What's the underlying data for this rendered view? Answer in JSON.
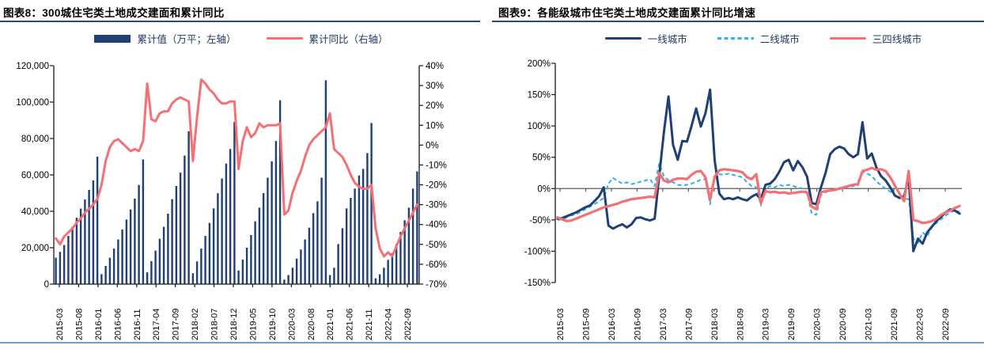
{
  "colors": {
    "navy": "#1F4073",
    "red": "#F47074",
    "cyan": "#2FB0E8",
    "axis": "#1a1a1a",
    "zero_line": "#595959",
    "title_rule": "#28497A",
    "footer_rule": "#7C9CC4",
    "legend_text": "#203A60"
  },
  "figure8": {
    "title": "图表8：300城住宅类土地成交建面和累计同比",
    "legend": [
      "累计值（万平；左轴）",
      "累计同比（右轴）"
    ]
  },
  "figure9": {
    "title": "图表9：各能级城市住宅类土地成交建面累计同比增速",
    "legend": [
      "一线城市",
      "二线城市",
      "三四线城市"
    ]
  },
  "chart_data": [
    {
      "type": "bar",
      "title": "图表8：300城住宅类土地成交建面和累计同比",
      "months": [
        "2015-02",
        "2015-03",
        "2015-04",
        "2015-05",
        "2015-06",
        "2015-07",
        "2015-08",
        "2015-09",
        "2015-10",
        "2015-11",
        "2015-12",
        "2016-02",
        "2016-03",
        "2016-04",
        "2016-05",
        "2016-06",
        "2016-07",
        "2016-08",
        "2016-09",
        "2016-10",
        "2016-11",
        "2016-12",
        "2017-02",
        "2017-03",
        "2017-04",
        "2017-05",
        "2017-06",
        "2017-07",
        "2017-08",
        "2017-09",
        "2017-10",
        "2017-11",
        "2017-12",
        "2018-02",
        "2018-03",
        "2018-04",
        "2018-05",
        "2018-06",
        "2018-07",
        "2018-08",
        "2018-09",
        "2018-10",
        "2018-11",
        "2018-12",
        "2019-02",
        "2019-03",
        "2019-04",
        "2019-05",
        "2019-06",
        "2019-07",
        "2019-08",
        "2019-09",
        "2019-10",
        "2019-11",
        "2019-12",
        "2020-02",
        "2020-03",
        "2020-04",
        "2020-05",
        "2020-06",
        "2020-07",
        "2020-08",
        "2020-09",
        "2020-10",
        "2020-11",
        "2020-12",
        "2021-02",
        "2021-03",
        "2021-04",
        "2021-05",
        "2021-06",
        "2021-07",
        "2021-08",
        "2021-09",
        "2021-10",
        "2021-11",
        "2021-12",
        "2022-02",
        "2022-03",
        "2022-04",
        "2022-05",
        "2022-06",
        "2022-07",
        "2022-08",
        "2022-09",
        "2022-10",
        "2022-11",
        "2022-12"
      ],
      "series": [
        {
          "name": "累计值（万平；左轴）",
          "type": "bar",
          "axis": "left",
          "values": [
            14500,
            17700,
            21500,
            26500,
            31500,
            36500,
            41500,
            46500,
            51800,
            57000,
            70000,
            5500,
            10000,
            14500,
            19500,
            24500,
            30000,
            35500,
            41000,
            47000,
            54500,
            68500,
            6500,
            12600,
            18400,
            24900,
            31500,
            38700,
            46700,
            53900,
            61200,
            70600,
            84000,
            6000,
            12500,
            19500,
            26500,
            33600,
            41600,
            49900,
            58000,
            66200,
            74200,
            89100,
            7500,
            13500,
            20000,
            27000,
            34500,
            42000,
            50000,
            58500,
            67500,
            78600,
            101000,
            2500,
            5000,
            9000,
            14000,
            19000,
            24500,
            31000,
            39000,
            45500,
            58500,
            112000,
            5000,
            9000,
            22000,
            30700,
            41600,
            47400,
            52500,
            59700,
            63300,
            72000,
            88500,
            3200,
            5400,
            9000,
            13300,
            17000,
            22000,
            28600,
            35100,
            42000,
            52500,
            61900
          ]
        },
        {
          "name": "累计同比（右轴）",
          "type": "line",
          "axis": "right",
          "values": [
            -47,
            -50,
            -46,
            -44,
            -42,
            -39,
            -37,
            -34,
            -32,
            -30,
            -27,
            -20,
            -8,
            -1,
            2,
            3,
            1,
            -1,
            -3,
            -2,
            -3,
            2,
            31,
            13,
            12,
            16,
            17,
            17,
            21,
            23,
            24,
            23,
            22,
            -8,
            14,
            33,
            31,
            28,
            26,
            23,
            21,
            21,
            22,
            22,
            -12,
            2,
            9,
            4,
            6,
            11,
            9,
            10,
            10,
            10,
            11,
            -35,
            -33,
            -24,
            -18,
            -13,
            -6,
            0,
            3,
            5,
            7,
            9,
            16,
            -2,
            -4,
            -6,
            -10,
            -15,
            -19,
            -21,
            -22,
            -22,
            -20,
            -42,
            -52,
            -56,
            -54,
            -56,
            -51,
            -46,
            -42,
            -38,
            -34,
            -30
          ]
        }
      ],
      "y_left_axis": {
        "min": 0,
        "max": 120000,
        "ticks": [
          "120,000",
          "100,000",
          "80,000",
          "60,000",
          "40,000",
          "20,000",
          "0"
        ]
      },
      "y_right_axis": {
        "min": -70,
        "max": 40,
        "ticks": [
          "40%",
          "30%",
          "20%",
          "10%",
          "0%",
          "-10%",
          "-20%",
          "-30%",
          "-40%",
          "-50%",
          "-60%",
          "-70%"
        ]
      },
      "x_tick_labels": [
        "2015-03",
        "2015-08",
        "2016-01",
        "2016-06",
        "2016-11",
        "2017-04",
        "2017-09",
        "2018-02",
        "2018-07",
        "2018-12",
        "2019-05",
        "2019-10",
        "2020-03",
        "2020-08",
        "2021-01",
        "2021-06",
        "2021-11",
        "2022-04",
        "2022-09"
      ],
      "grid": "off",
      "legend_position": "top"
    },
    {
      "type": "line",
      "title": "图表9：各能级城市住宅类土地成交建面累计同比增速",
      "months": [
        "2015-02",
        "2015-03",
        "2015-04",
        "2015-05",
        "2015-06",
        "2015-07",
        "2015-08",
        "2015-09",
        "2015-10",
        "2015-11",
        "2015-12",
        "2016-02",
        "2016-03",
        "2016-04",
        "2016-05",
        "2016-06",
        "2016-07",
        "2016-08",
        "2016-09",
        "2016-10",
        "2016-11",
        "2016-12",
        "2017-02",
        "2017-03",
        "2017-04",
        "2017-05",
        "2017-06",
        "2017-07",
        "2017-08",
        "2017-09",
        "2017-10",
        "2017-11",
        "2017-12",
        "2018-02",
        "2018-03",
        "2018-04",
        "2018-05",
        "2018-06",
        "2018-07",
        "2018-08",
        "2018-09",
        "2018-10",
        "2018-11",
        "2018-12",
        "2019-02",
        "2019-03",
        "2019-04",
        "2019-05",
        "2019-06",
        "2019-07",
        "2019-08",
        "2019-09",
        "2019-10",
        "2019-11",
        "2019-12",
        "2020-02",
        "2020-03",
        "2020-04",
        "2020-05",
        "2020-06",
        "2020-07",
        "2020-08",
        "2020-09",
        "2020-10",
        "2020-11",
        "2020-12",
        "2021-02",
        "2021-03",
        "2021-04",
        "2021-05",
        "2021-06",
        "2021-07",
        "2021-08",
        "2021-09",
        "2021-10",
        "2021-11",
        "2021-12",
        "2022-02",
        "2022-03",
        "2022-04",
        "2022-05",
        "2022-06",
        "2022-07",
        "2022-08",
        "2022-09",
        "2022-10",
        "2022-11",
        "2022-12"
      ],
      "series": [
        {
          "name": "一线城市",
          "type": "line",
          "style": "solid",
          "values": [
            -48,
            -47,
            -44,
            -41,
            -38,
            -34,
            -30,
            -27,
            -20,
            -12,
            2,
            -59,
            -64,
            -60,
            -57,
            -62,
            -57,
            -47,
            -46,
            -49,
            -51,
            -48,
            20,
            90,
            147,
            70,
            46,
            76,
            75,
            100,
            128,
            99,
            120,
            158,
            45,
            -8,
            -17,
            -15,
            -17,
            -14,
            -17,
            -19,
            -13,
            -9,
            -17,
            6,
            8,
            15,
            27,
            42,
            46,
            29,
            44,
            34,
            19,
            -23,
            -25,
            2,
            25,
            55,
            63,
            67,
            64,
            55,
            50,
            55,
            106,
            48,
            56,
            34,
            20,
            13,
            2,
            -11,
            -15,
            -12,
            18,
            -100,
            -80,
            -88,
            -70,
            -61,
            -52,
            -45,
            -38,
            -33,
            -35,
            -40
          ]
        },
        {
          "name": "二线城市",
          "type": "line",
          "style": "dashed",
          "values": [
            -50,
            -49,
            -46,
            -43,
            -41,
            -37,
            -33,
            -29,
            -25,
            -20,
            -15,
            8,
            17,
            12,
            8,
            10,
            7,
            9,
            11,
            13,
            15,
            4,
            40,
            20,
            13,
            10,
            6,
            5,
            6,
            8,
            11,
            14,
            15,
            -25,
            20,
            23,
            22,
            24,
            22,
            20,
            18,
            10,
            4,
            2,
            -27,
            0,
            4,
            2,
            6,
            4,
            6,
            4,
            2,
            0,
            -6,
            -40,
            -42,
            -10,
            -6,
            -3,
            -1,
            1,
            2,
            3,
            4,
            5,
            27,
            24,
            20,
            12,
            5,
            0,
            -5,
            -11,
            -14,
            -16,
            -17,
            -80,
            -87,
            -70,
            -76,
            -62,
            -55,
            -49,
            -43,
            -38,
            -35,
            -37
          ]
        },
        {
          "name": "三四线城市",
          "type": "line",
          "style": "solid",
          "values": [
            -46,
            -49,
            -52,
            -51,
            -48,
            -45,
            -42,
            -39,
            -36,
            -33,
            -30,
            -28,
            -26,
            -24,
            -21,
            -19,
            -17,
            -16,
            -15,
            -14,
            -13,
            -14,
            25,
            13,
            10,
            14,
            16,
            16,
            15,
            22,
            27,
            28,
            18,
            -18,
            19,
            29,
            31,
            30,
            29,
            28,
            26,
            18,
            15,
            23,
            -23,
            -4,
            -6,
            -5,
            -7,
            -6,
            -8,
            -7,
            -6,
            -5,
            -6,
            -29,
            -33,
            -6,
            -4,
            -3,
            -2,
            0,
            2,
            4,
            6,
            7,
            28,
            30,
            33,
            30,
            31,
            28,
            18,
            5,
            -8,
            -20,
            28,
            -50,
            -52,
            -55,
            -54,
            -52,
            -48,
            -42,
            -38,
            -35,
            -31,
            -28
          ]
        }
      ],
      "y_axis": {
        "min": -150,
        "max": 200,
        "ticks": [
          "200%",
          "150%",
          "100%",
          "50%",
          "0%",
          "-50%",
          "-100%",
          "-150%"
        ]
      },
      "x_tick_labels": [
        "2015-03",
        "2015-09",
        "2016-03",
        "2016-09",
        "2017-03",
        "2017-09",
        "2018-03",
        "2018-09",
        "2019-03",
        "2019-09",
        "2020-03",
        "2020-09",
        "2021-03",
        "2021-09",
        "2022-03",
        "2022-09"
      ],
      "grid": "zero-line-only",
      "legend_position": "top"
    }
  ]
}
